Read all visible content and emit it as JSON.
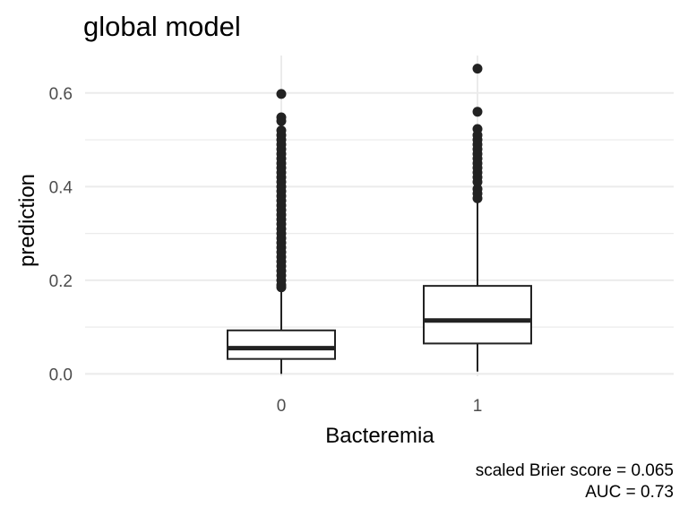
{
  "chart_data": {
    "type": "boxplot",
    "title": "global model",
    "xlabel": "Bacteremia",
    "ylabel": "prediction",
    "categories": [
      "0",
      "1"
    ],
    "y_ticks": [
      "0.0",
      "0.2",
      "0.4",
      "0.6"
    ],
    "ylim": [
      -0.005,
      0.68
    ],
    "grid": true,
    "boxes": [
      {
        "category": "0",
        "whisker_low": 0.0,
        "q1": 0.032,
        "median": 0.055,
        "q3": 0.093,
        "whisker_high": 0.183,
        "outliers": [
          0.185,
          0.19,
          0.2,
          0.21,
          0.22,
          0.23,
          0.24,
          0.25,
          0.26,
          0.27,
          0.28,
          0.29,
          0.3,
          0.31,
          0.32,
          0.33,
          0.34,
          0.35,
          0.36,
          0.37,
          0.38,
          0.39,
          0.4,
          0.41,
          0.42,
          0.43,
          0.44,
          0.45,
          0.46,
          0.47,
          0.48,
          0.49,
          0.5,
          0.51,
          0.52,
          0.54,
          0.548,
          0.598
        ]
      },
      {
        "category": "1",
        "whisker_low": 0.005,
        "q1": 0.065,
        "median": 0.114,
        "q3": 0.188,
        "whisker_high": 0.37,
        "outliers": [
          0.375,
          0.385,
          0.395,
          0.41,
          0.42,
          0.43,
          0.44,
          0.45,
          0.46,
          0.47,
          0.48,
          0.49,
          0.5,
          0.51,
          0.523,
          0.56,
          0.652
        ]
      }
    ]
  },
  "caption": {
    "line1": "scaled Brier score = 0.065",
    "line2": "AUC = 0.73"
  }
}
